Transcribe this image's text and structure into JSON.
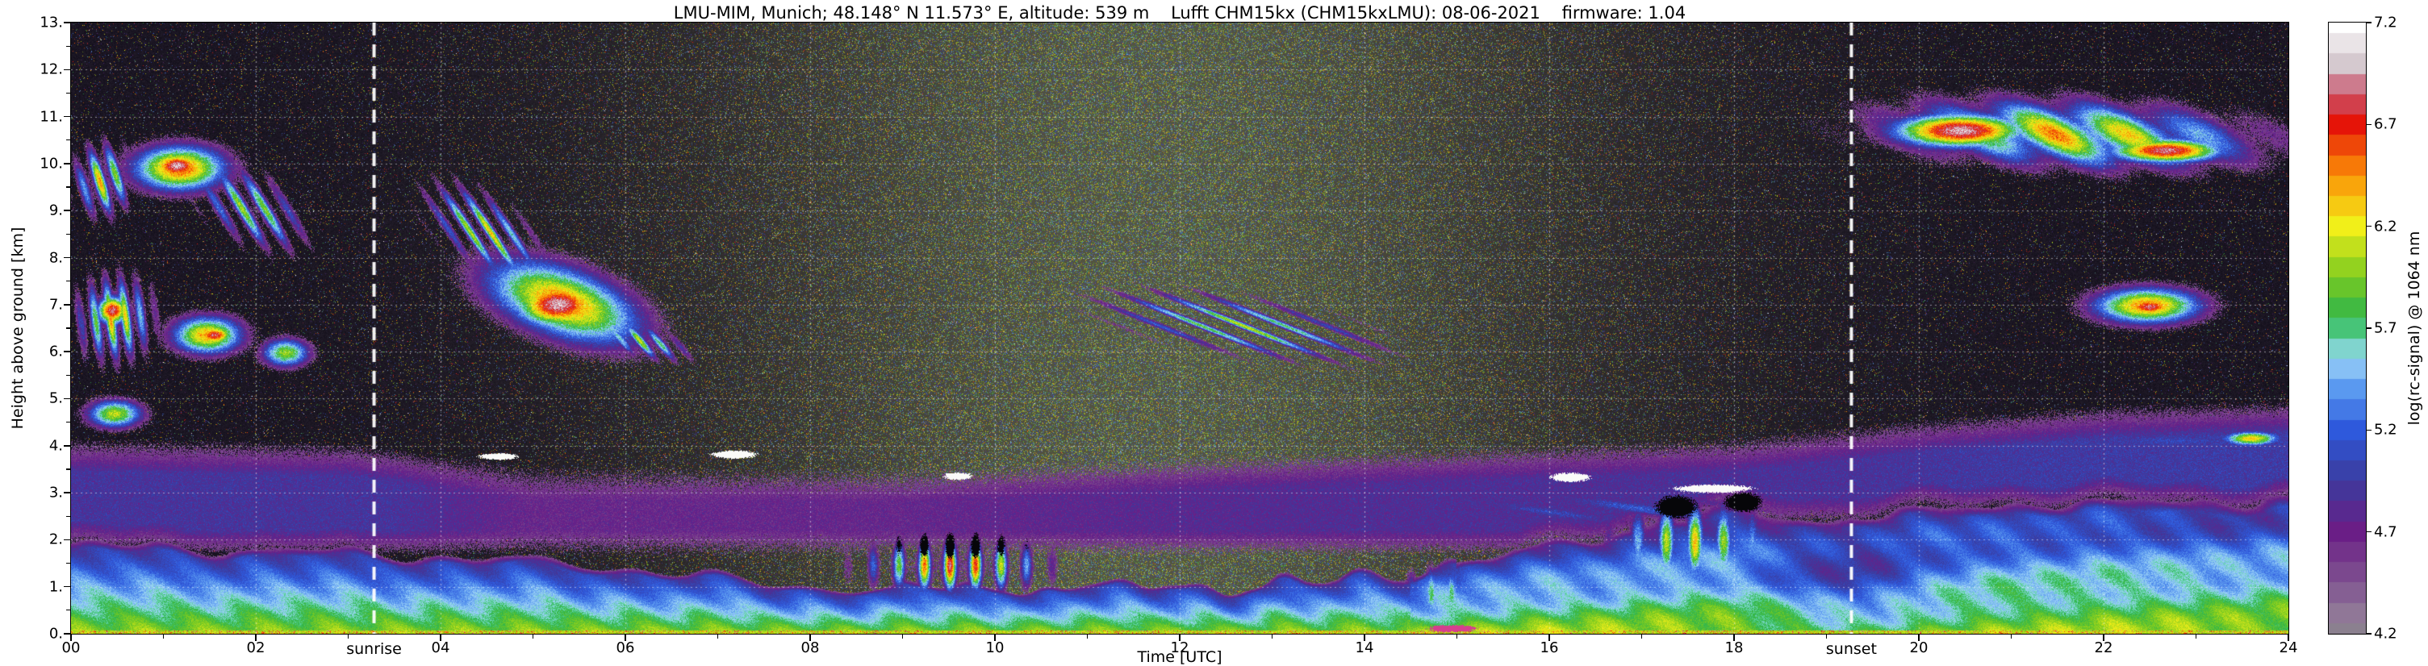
{
  "title": "LMU-MIM, Munich; 48.148° N 11.573° E, altitude: 539 m    Lufft CHM15kx (CHM15kxLMU): 08-06-2021    firmware: 1.04",
  "chart_data": {
    "type": "heatmap",
    "xlabel": "Time [UTC]",
    "ylabel": "Height above ground [km]",
    "xlim": [
      0,
      24
    ],
    "ylim": [
      0,
      13
    ],
    "xticks": [
      [
        0,
        "00"
      ],
      [
        2,
        "02"
      ],
      [
        4,
        "04"
      ],
      [
        6,
        "06"
      ],
      [
        8,
        "08"
      ],
      [
        10,
        "10"
      ],
      [
        12,
        "12"
      ],
      [
        14,
        "14"
      ],
      [
        16,
        "16"
      ],
      [
        18,
        "18"
      ],
      [
        20,
        "20"
      ],
      [
        22,
        "22"
      ],
      [
        24,
        "24"
      ]
    ],
    "yticks": [
      [
        0,
        "0."
      ],
      [
        1,
        "1."
      ],
      [
        2,
        "2."
      ],
      [
        3,
        "3."
      ],
      [
        4,
        "4."
      ],
      [
        5,
        "5."
      ],
      [
        6,
        "6."
      ],
      [
        7,
        "7."
      ],
      [
        8,
        "8."
      ],
      [
        9,
        "9."
      ],
      [
        10,
        "10."
      ],
      [
        11,
        "11."
      ],
      [
        12,
        "12."
      ],
      [
        13,
        "13."
      ]
    ],
    "grid": {
      "x_step": 2,
      "y_step": 1
    },
    "annotations": [
      {
        "label": "sunrise",
        "x": 3.28
      },
      {
        "label": "sunset",
        "x": 19.27
      }
    ],
    "colorbar": {
      "label": "log(rc-signal) @ 1064 nm",
      "range": [
        4.2,
        7.2
      ],
      "ticks": [
        [
          7.2,
          "7.2"
        ],
        [
          6.7,
          "6.7"
        ],
        [
          6.2,
          "6.2"
        ],
        [
          5.7,
          "5.7"
        ],
        [
          5.2,
          "5.2"
        ],
        [
          4.7,
          "4.7"
        ],
        [
          4.2,
          "4.2"
        ]
      ],
      "stops": [
        [
          3.0,
          "#0c0913"
        ],
        [
          3.6,
          "#191320"
        ],
        [
          4.0,
          "#2c2236"
        ],
        [
          4.18,
          "#4a3c52"
        ],
        [
          4.2,
          "#9a8f9c"
        ],
        [
          4.45,
          "#7f5290"
        ],
        [
          4.7,
          "#6a1d86"
        ],
        [
          4.95,
          "#3b3b9e"
        ],
        [
          5.2,
          "#2e59dd"
        ],
        [
          5.4,
          "#5b9af0"
        ],
        [
          5.55,
          "#9fd4f7"
        ],
        [
          5.65,
          "#5ed3a2"
        ],
        [
          5.75,
          "#2eb44b"
        ],
        [
          5.95,
          "#7ccb20"
        ],
        [
          6.2,
          "#f2ef19"
        ],
        [
          6.45,
          "#fb9207"
        ],
        [
          6.7,
          "#e51408"
        ],
        [
          6.85,
          "#c9556d"
        ],
        [
          7.0,
          "#d5c9cf"
        ],
        [
          7.2,
          "#ffffff"
        ]
      ]
    },
    "boundary_layer": {
      "v_ground": 6.0,
      "depth": [
        [
          0,
          1.95
        ],
        [
          2,
          1.85
        ],
        [
          4,
          1.7
        ],
        [
          6,
          1.45
        ],
        [
          7.5,
          1.1
        ],
        [
          9,
          0.95
        ],
        [
          11,
          0.95
        ],
        [
          13,
          1.0
        ],
        [
          14,
          1.15
        ],
        [
          15,
          1.5
        ],
        [
          16,
          1.95
        ],
        [
          17,
          2.4
        ],
        [
          18,
          2.7
        ],
        [
          19,
          2.55
        ],
        [
          20,
          2.7
        ],
        [
          21,
          2.9
        ],
        [
          22,
          2.85
        ],
        [
          23,
          2.9
        ],
        [
          24,
          2.9
        ]
      ]
    },
    "aerosol_layer": {
      "strength": [
        [
          0,
          1.0
        ],
        [
          3.5,
          1.0
        ],
        [
          5,
          0.5
        ],
        [
          9,
          0.55
        ],
        [
          11,
          0.7
        ],
        [
          14,
          0.85
        ],
        [
          19,
          0.95
        ],
        [
          21,
          1.1
        ],
        [
          24,
          1.15
        ]
      ],
      "top": [
        [
          0,
          3.8
        ],
        [
          3,
          3.7
        ],
        [
          5,
          3.2
        ],
        [
          9,
          3.15
        ],
        [
          12,
          3.4
        ],
        [
          15,
          3.6
        ],
        [
          18,
          3.8
        ],
        [
          20,
          4.2
        ],
        [
          22,
          4.5
        ],
        [
          24,
          4.6
        ]
      ]
    },
    "features": [
      {
        "t": [
          0.0,
          0.7
        ],
        "h": [
          8.8,
          10.5
        ],
        "v": 6.5,
        "stripes": {
          "a": 5,
          "b": 0.8,
          "e": 1.3,
          "base": 0.15
        }
      },
      {
        "t": [
          0.55,
          1.8
        ],
        "h": [
          9.3,
          10.5
        ],
        "v": 6.6
      },
      {
        "t": [
          0.8,
          1.5
        ],
        "h": [
          9.6,
          10.3
        ],
        "v": 7.0
      },
      {
        "t": [
          1.3,
          2.6
        ],
        "h": [
          8.2,
          9.9
        ],
        "v": 6.15,
        "slant": -0.8,
        "stripes": {
          "a": 4,
          "b": 1.2,
          "e": 1.6,
          "base": 0.1
        }
      },
      {
        "t": [
          0.0,
          0.95
        ],
        "h": [
          5.7,
          7.7
        ],
        "v": 6.5,
        "stripes": {
          "a": 6,
          "b": 0.4,
          "e": 1.2,
          "base": 0.15
        }
      },
      {
        "t": [
          0.25,
          0.65
        ],
        "h": [
          6.5,
          7.25
        ],
        "v": 6.9
      },
      {
        "t": [
          1.0,
          1.95
        ],
        "h": [
          5.85,
          6.85
        ],
        "v": 6.4
      },
      {
        "t": [
          1.3,
          1.8
        ],
        "h": [
          6.1,
          6.6
        ],
        "v": 6.85
      },
      {
        "t": [
          0.1,
          0.85
        ],
        "h": [
          4.3,
          5.05
        ],
        "v": 6.1
      },
      {
        "t": [
          2.0,
          2.65
        ],
        "h": [
          5.6,
          6.35
        ],
        "v": 6.0
      },
      {
        "t": [
          3.8,
          5.15
        ],
        "h": [
          7.7,
          9.4
        ],
        "v": 6.35,
        "slant": -1.0,
        "stripes": {
          "a": 4.5,
          "b": 1.5,
          "e": 1.8,
          "base": 0.08
        }
      },
      {
        "t": [
          4.3,
          6.35
        ],
        "h": [
          6.1,
          8.0
        ],
        "v": 6.5,
        "slant": -0.55
      },
      {
        "t": [
          4.7,
          5.85
        ],
        "h": [
          6.4,
          7.6
        ],
        "v": 7.0
      },
      {
        "t": [
          5.6,
          6.75
        ],
        "h": [
          5.85,
          6.6
        ],
        "v": 6.15,
        "slant": -0.5,
        "stripes": {
          "a": 5,
          "b": 2,
          "e": 1.4,
          "base": 0.1
        }
      },
      {
        "t": [
          8.45,
          10.68
        ],
        "h": [
          0.8,
          2.1
        ],
        "v": 6.9,
        "stripes": {
          "a": 3.6,
          "b": 0,
          "e": 2.2,
          "base": 0.1
        }
      },
      {
        "t": [
          11.0,
          14.3
        ],
        "h": [
          5.9,
          7.2
        ],
        "v": 6.15,
        "slant": -0.3,
        "stripes": {
          "a": 2.2,
          "b": 2.8,
          "e": 3.0,
          "base": 0.0
        }
      },
      {
        "t": [
          14.3,
          15.35
        ],
        "h": [
          0.2,
          1.5
        ],
        "v": 5.9,
        "stripes": {
          "a": 4.5,
          "b": 0,
          "e": 1.5,
          "base": 0.2
        }
      },
      {
        "t": [
          16.5,
          18.6
        ],
        "h": [
          1.0,
          2.9
        ],
        "v": 6.35,
        "stripes": {
          "a": 3.2,
          "b": 0,
          "e": 1.8,
          "base": 0.15
        }
      },
      {
        "t": [
          14.2,
          19.2
        ],
        "h": [
          2.2,
          3.1
        ],
        "v": 5.2,
        "stripes": {
          "a": 0.8,
          "b": 2.5,
          "e": 1.2,
          "base": 0.35
        }
      },
      {
        "t": [
          19.35,
          24.0
        ],
        "h": [
          9.8,
          11.45
        ],
        "v": 6.55,
        "slant": -0.1,
        "stripes": {
          "a": 1.2,
          "b": 0.8,
          "e": 0.8,
          "base": 0.45
        }
      },
      {
        "t": [
          19.55,
          21.35
        ],
        "h": [
          10.25,
          11.15
        ],
        "v": 7.0
      },
      {
        "t": [
          21.9,
          23.45
        ],
        "h": [
          9.95,
          10.6
        ],
        "v": 6.9
      },
      {
        "t": [
          21.75,
          23.2
        ],
        "h": [
          6.5,
          7.45
        ],
        "v": 6.5
      },
      {
        "t": [
          22.15,
          22.85
        ],
        "h": [
          6.7,
          7.2
        ],
        "v": 6.85
      },
      {
        "t": [
          23.2,
          24.0
        ],
        "h": [
          3.95,
          4.35
        ],
        "v": 6.3
      },
      {
        "t": [
          0.0,
          3.3
        ],
        "h": [
          2.95,
          3.3
        ],
        "v": 4.85
      },
      {
        "t": [
          19.5,
          24.0
        ],
        "h": [
          3.35,
          3.7
        ],
        "v": 4.9
      },
      {
        "t": [
          21.5,
          24.0
        ],
        "h": [
          3.9,
          4.3
        ],
        "v": 5.05
      }
    ],
    "marks": [
      {
        "t": [
          8.5,
          10.65
        ],
        "h": [
          1.5,
          2.25
        ],
        "mode": "black",
        "stripes": {
          "a": 3.6,
          "b": 0,
          "e": 3.0,
          "base": 0.0
        },
        "th": 0.4
      },
      {
        "t": [
          17.05,
          17.7
        ],
        "h": [
          2.35,
          3.05
        ],
        "mode": "black",
        "th": 0.45
      },
      {
        "t": [
          17.8,
          18.4
        ],
        "h": [
          2.5,
          3.1
        ],
        "mode": "black",
        "th": 0.45
      },
      {
        "t": [
          4.35,
          4.9
        ],
        "h": [
          3.68,
          3.86
        ],
        "mode": "white",
        "th": 0.35
      },
      {
        "t": [
          6.85,
          7.5
        ],
        "h": [
          3.7,
          3.92
        ],
        "mode": "white",
        "th": 0.35
      },
      {
        "t": [
          9.4,
          9.8
        ],
        "h": [
          3.25,
          3.45
        ],
        "mode": "white",
        "th": 0.35
      },
      {
        "t": [
          15.95,
          16.5
        ],
        "h": [
          3.2,
          3.45
        ],
        "mode": "white",
        "th": 0.35
      },
      {
        "t": [
          17.1,
          18.45
        ],
        "h": [
          2.95,
          3.22
        ],
        "mode": "white",
        "th": 0.5
      },
      {
        "t": [
          14.55,
          15.35
        ],
        "h": [
          0.0,
          0.22
        ],
        "mode": "pink",
        "th": 0.45
      }
    ]
  }
}
